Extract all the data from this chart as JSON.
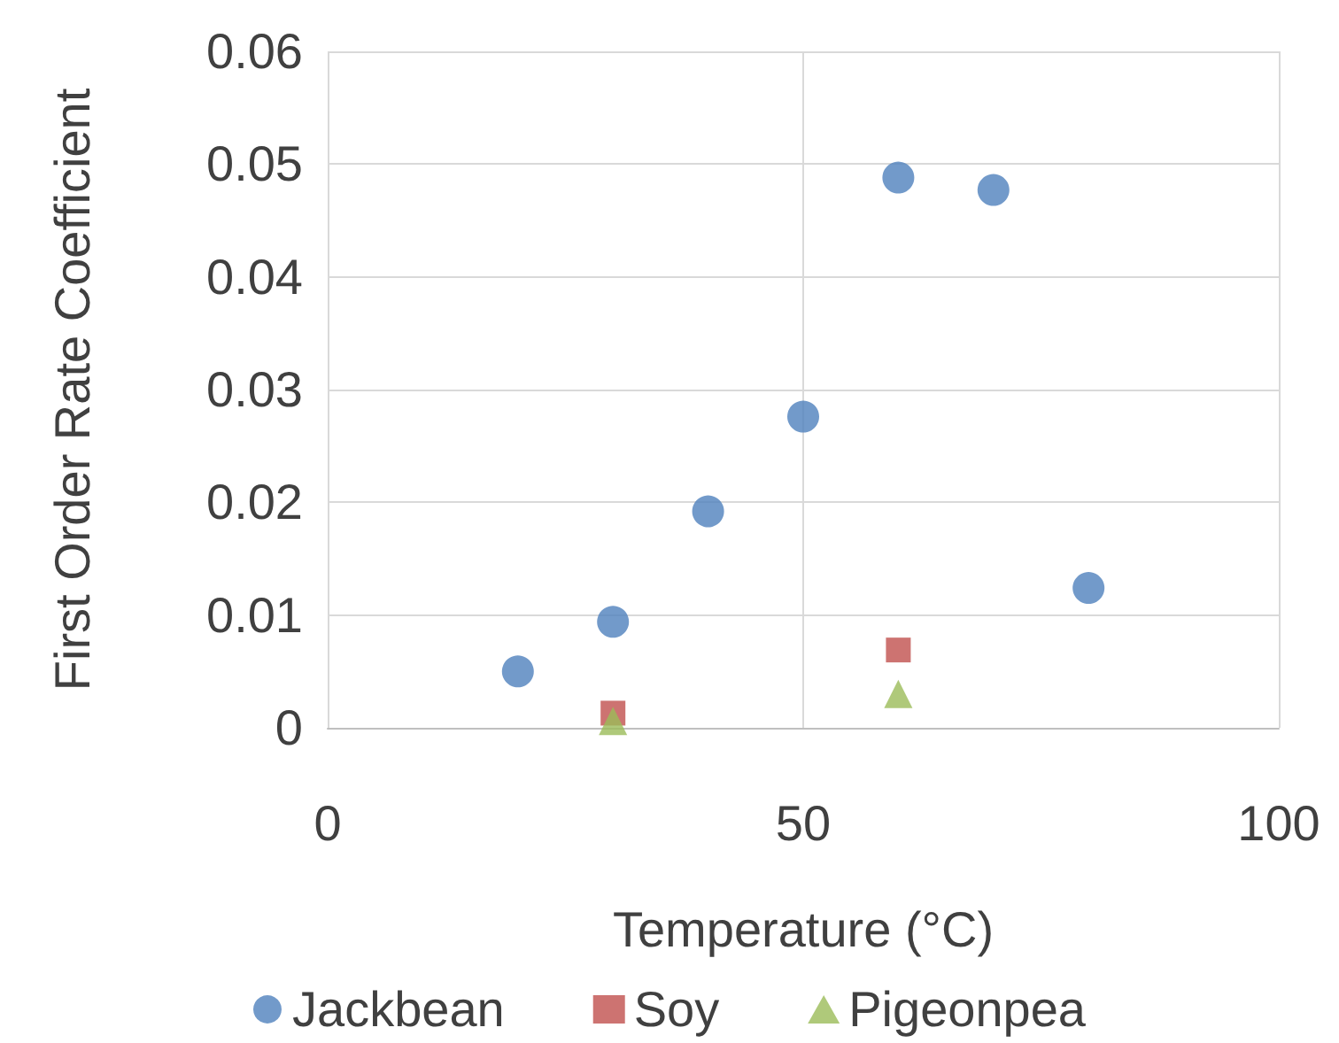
{
  "chart_data": {
    "type": "scatter",
    "xlabel": "Temperature (°C)",
    "ylabel": "First Order Rate Coefficient",
    "xlim": [
      0,
      100
    ],
    "xticks": [
      0,
      50,
      100
    ],
    "ylim": [
      0,
      0.06
    ],
    "yticks": [
      0,
      0.01,
      0.02,
      0.03,
      0.04,
      0.05,
      0.06
    ],
    "grid": true,
    "legend": "bottom",
    "series": [
      {
        "name": "Jackbean",
        "color": "#4f81bd",
        "marker": "circle",
        "x": [
          20,
          30,
          40,
          50,
          60,
          70,
          80
        ],
        "values": [
          0.005,
          0.0094,
          0.0192,
          0.0276,
          0.0488,
          0.0477,
          0.0124
        ]
      },
      {
        "name": "Soy",
        "color": "#c0504d",
        "marker": "square",
        "x": [
          30,
          60
        ],
        "values": [
          0.0013,
          0.0069
        ]
      },
      {
        "name": "Pigeonpea",
        "color": "#9bbb59",
        "marker": "triangle",
        "x": [
          30,
          60
        ],
        "values": [
          0.0006,
          0.003
        ]
      }
    ]
  }
}
